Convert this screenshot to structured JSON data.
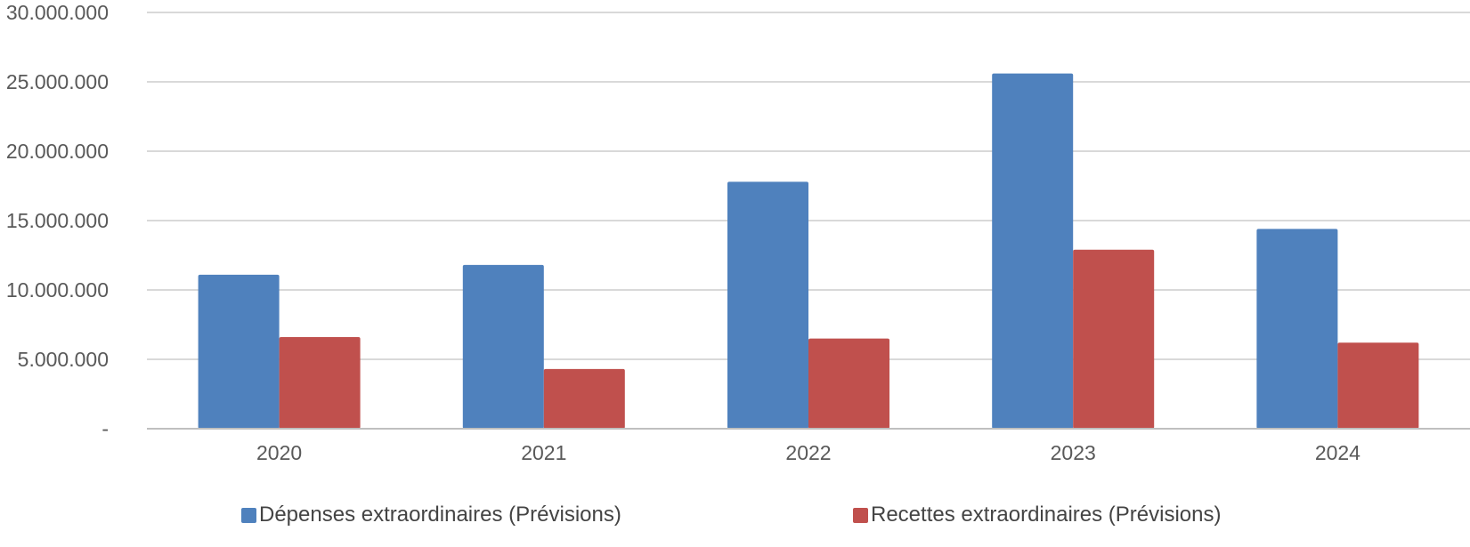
{
  "chart_data": {
    "type": "bar",
    "title": "",
    "xlabel": "",
    "ylabel": "",
    "categories": [
      "2020",
      "2021",
      "2022",
      "2023",
      "2024"
    ],
    "series": [
      {
        "name": "Dépenses extraordinaires (Prévisions)",
        "color": "#4f81bd",
        "values": [
          11100000,
          11800000,
          17800000,
          25600000,
          14400000
        ]
      },
      {
        "name": "Recettes extraordinaires (Prévisions)",
        "color": "#c0504d",
        "values": [
          6600000,
          4300000,
          6500000,
          12900000,
          6200000
        ]
      }
    ],
    "ylim": [
      0,
      30000000
    ],
    "yticks": [
      0,
      5000000,
      10000000,
      15000000,
      20000000,
      25000000,
      30000000
    ],
    "ytick_labels": [
      "-",
      "5.000.000",
      "10.000.000",
      "15.000.000",
      "20.000.000",
      "25.000.000",
      "30.000.000"
    ],
    "grid": true,
    "legend_position": "bottom"
  }
}
